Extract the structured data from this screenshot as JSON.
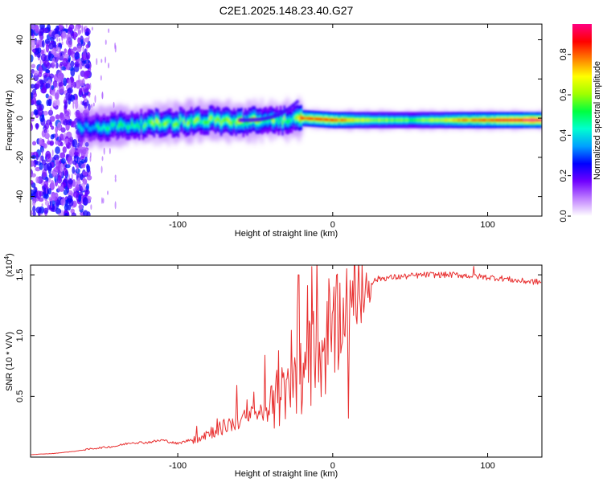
{
  "title": "C2E1.2025.148.23.40.G27",
  "chart_data": [
    {
      "type": "heatmap",
      "name": "spectrogram",
      "xlabel": "Height of straight line (km)",
      "ylabel": "Frequency (Hz)",
      "xlim": [
        -195,
        135
      ],
      "ylim": [
        -50,
        48
      ],
      "xticks": [
        -100,
        0,
        100
      ],
      "xtick_labels": [
        "-100",
        "0",
        "100"
      ],
      "yticks": [
        -40,
        -20,
        0,
        20,
        40
      ],
      "ytick_labels": [
        "-40",
        "-20",
        "0",
        "20",
        "40"
      ],
      "grid": false,
      "noise_region_x": [
        -195,
        -160
      ],
      "ridge_x": [
        -165,
        -140,
        -120,
        -100,
        -80,
        -60,
        -40,
        -25,
        -20,
        0,
        20,
        50,
        80,
        100,
        120,
        135
      ],
      "ridge_y": [
        -5,
        -4,
        -3,
        -2,
        -1,
        -2,
        -1,
        -1,
        0,
        -1,
        -1,
        -1,
        -1,
        -1,
        -1,
        -1
      ],
      "ridge_peak_amplitude": [
        0.35,
        0.45,
        0.55,
        0.5,
        0.55,
        0.6,
        0.55,
        0.5,
        0.8,
        0.8,
        0.6,
        0.5,
        0.7,
        0.8,
        0.9,
        0.95
      ],
      "colorbar": {
        "label": "Normalized spectral amplitude",
        "range": [
          0.0,
          0.95
        ],
        "ticks": [
          0.0,
          0.2,
          0.4,
          0.6,
          0.8
        ],
        "tick_labels": [
          "0.0",
          "0.2",
          "0.4",
          "0.6",
          "0.8"
        ],
        "colors": [
          "#ffffff",
          "#c080ff",
          "#7000ff",
          "#0000ff",
          "#00a0ff",
          "#00ffd0",
          "#00ff40",
          "#a0ff00",
          "#ffff00",
          "#ff8000",
          "#ff0000",
          "#ff0080"
        ]
      }
    },
    {
      "type": "line",
      "name": "snr",
      "xlabel": "Height of straight line (km)",
      "ylabel": "SNR (10 * V/V)",
      "scale_label": "(x10^4)",
      "scale_base": "(x10",
      "scale_exp": "4",
      "scale_close": ")",
      "xlim": [
        -195,
        135
      ],
      "ylim": [
        0,
        1.58
      ],
      "xticks": [
        -100,
        0,
        100
      ],
      "xtick_labels": [
        "-100",
        "0",
        "100"
      ],
      "yticks": [
        0.5,
        1.0,
        1.5
      ],
      "ytick_labels": [
        "0.5",
        "1.0",
        "1.5"
      ],
      "grid": false,
      "line_color": "#e83030",
      "series": [
        {
          "name": "SNR",
          "x": [
            -195,
            -180,
            -165,
            -155,
            -140,
            -130,
            -120,
            -110,
            -100,
            -90,
            -80,
            -70,
            -60,
            -50,
            -40,
            -30,
            -25,
            -20,
            -15,
            -10,
            -5,
            0,
            5,
            10,
            15,
            20,
            25,
            30,
            40,
            50,
            60,
            70,
            80,
            90,
            100,
            110,
            120,
            135
          ],
          "y": [
            0.02,
            0.03,
            0.05,
            0.07,
            0.09,
            0.12,
            0.12,
            0.14,
            0.11,
            0.15,
            0.2,
            0.25,
            0.3,
            0.35,
            0.4,
            0.5,
            0.6,
            0.68,
            0.75,
            0.8,
            0.9,
            1.0,
            1.1,
            1.2,
            1.3,
            1.38,
            1.44,
            1.47,
            1.48,
            1.49,
            1.5,
            1.5,
            1.5,
            1.49,
            1.48,
            1.47,
            1.45,
            1.44
          ]
        }
      ],
      "spikes": [
        {
          "x": -22,
          "y": 1.5
        },
        {
          "x": -17,
          "y": 0.9
        },
        {
          "x": 9,
          "y": 1.55
        },
        {
          "x": 10,
          "y": 0.32
        },
        {
          "x": 91,
          "y": 1.57
        }
      ]
    }
  ]
}
